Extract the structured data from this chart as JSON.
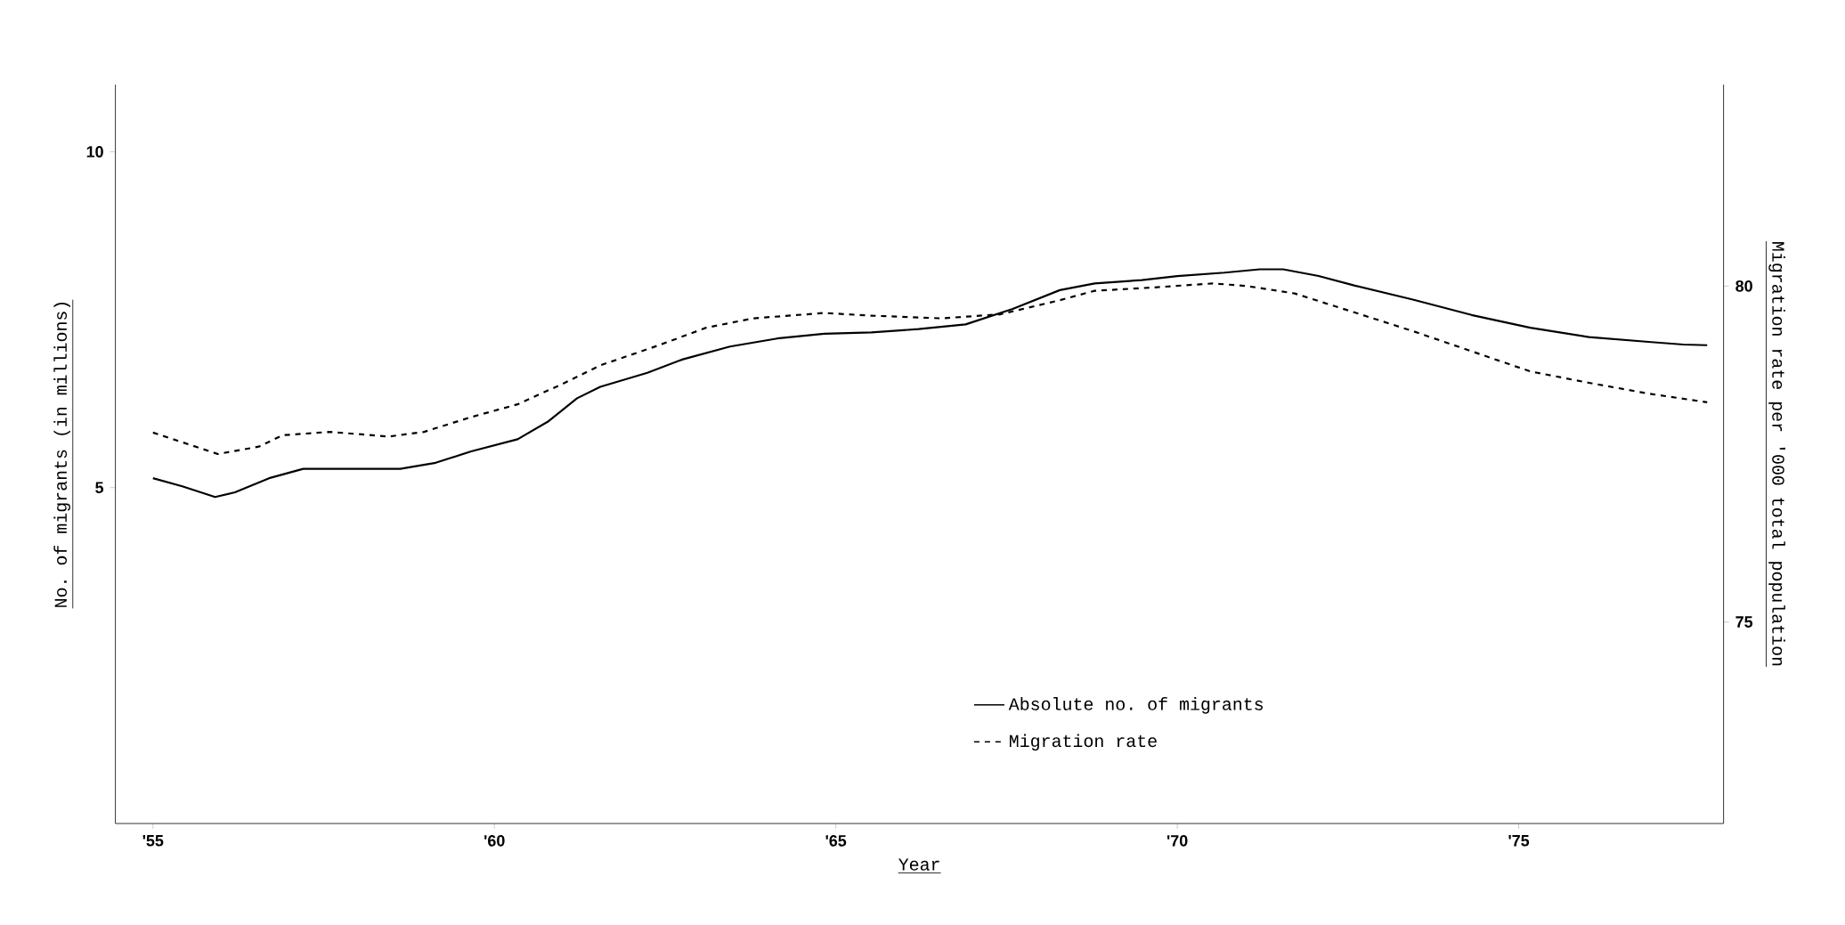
{
  "chart_data": {
    "type": "line",
    "xlabel": "Year",
    "ylabel": "No. of migrants (in millions)",
    "y2label": "Migration rate per '000 total population",
    "xlim": [
      54.45,
      78.0
    ],
    "ylim": [
      0,
      11
    ],
    "y2lim": [
      72,
      83
    ],
    "xticks": [
      {
        "value": 55,
        "label": "'55"
      },
      {
        "value": 60,
        "label": "'60"
      },
      {
        "value": 65,
        "label": "'65"
      },
      {
        "value": 70,
        "label": "'70"
      },
      {
        "value": 75,
        "label": "'75"
      }
    ],
    "yticks": [
      5,
      10
    ],
    "y2ticks": [
      75,
      80
    ],
    "legend": "bottom right",
    "series": [
      {
        "name": "Absolute no. of migrants",
        "color": "#000000",
        "line_style": "solid",
        "x": [
          55.0,
          55.43,
          55.91,
          56.2,
          56.7,
          57.2,
          57.93,
          58.62,
          59.14,
          59.66,
          60.34,
          60.78,
          61.21,
          61.55,
          62.24,
          62.76,
          63.45,
          64.14,
          64.83,
          65.52,
          66.21,
          66.9,
          67.59,
          68.28,
          68.79,
          69.48,
          70.0,
          70.69,
          71.21,
          71.55,
          72.07,
          72.59,
          73.45,
          74.31,
          75.17,
          76.03,
          76.9,
          77.41,
          77.76
        ],
        "values": [
          5.14,
          5.02,
          4.86,
          4.93,
          5.14,
          5.28,
          5.28,
          5.28,
          5.37,
          5.54,
          5.72,
          5.98,
          6.33,
          6.5,
          6.71,
          6.91,
          7.1,
          7.22,
          7.29,
          7.31,
          7.36,
          7.43,
          7.66,
          7.94,
          8.04,
          8.09,
          8.15,
          8.2,
          8.25,
          8.25,
          8.15,
          8.01,
          7.8,
          7.57,
          7.38,
          7.24,
          7.17,
          7.13,
          7.12
        ]
      },
      {
        "name": "Migration rate",
        "color": "#000000",
        "line_style": "dashed",
        "axis": "y2",
        "x": [
          55.0,
          55.95,
          56.55,
          56.9,
          57.59,
          58.45,
          58.97,
          59.66,
          60.34,
          61.03,
          61.55,
          62.41,
          63.1,
          63.79,
          64.83,
          65.52,
          66.55,
          67.41,
          68.28,
          68.79,
          69.66,
          70.52,
          71.03,
          71.72,
          72.59,
          73.45,
          74.31,
          75.17,
          76.03,
          76.9,
          77.76
        ],
        "values": [
          77.82,
          77.5,
          77.61,
          77.78,
          77.83,
          77.76,
          77.83,
          78.05,
          78.24,
          78.56,
          78.82,
          79.12,
          79.38,
          79.52,
          79.6,
          79.56,
          79.52,
          79.58,
          79.79,
          79.93,
          79.98,
          80.04,
          80.0,
          79.89,
          79.61,
          79.33,
          79.03,
          78.73,
          78.56,
          78.4,
          78.27
        ]
      }
    ]
  }
}
